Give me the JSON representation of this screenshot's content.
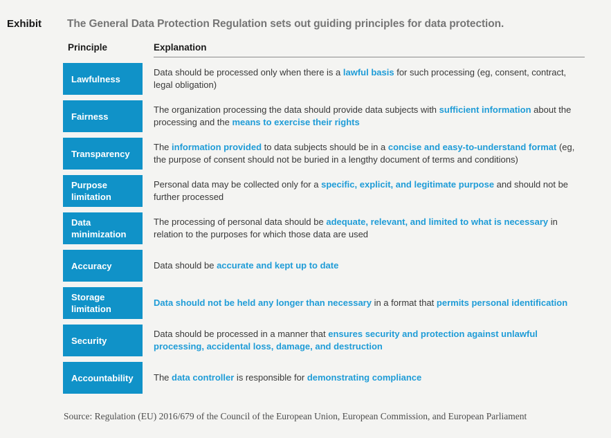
{
  "page": {
    "exhibit_label": "Exhibit",
    "title": "The General Data Protection Regulation sets out guiding principles for data protection.",
    "source": "Source: Regulation (EU) 2016/679 of the Council of the European Union, European Commission, and European Parliament"
  },
  "table": {
    "columns": [
      "Principle",
      "Explanation"
    ],
    "rows": [
      {
        "principle": "Lawfulness",
        "explanation": [
          {
            "text": "Data should be processed only when there is a ",
            "highlight": false
          },
          {
            "text": "lawful basis",
            "highlight": true
          },
          {
            "text": " for such processing (eg, consent, contract, legal obligation)",
            "highlight": false
          }
        ]
      },
      {
        "principle": "Fairness",
        "explanation": [
          {
            "text": "The organization processing the data should provide data subjects with ",
            "highlight": false
          },
          {
            "text": "sufficient information",
            "highlight": true
          },
          {
            "text": " about the processing and the ",
            "highlight": false
          },
          {
            "text": "means to exercise their rights",
            "highlight": true
          }
        ]
      },
      {
        "principle": "Transparency",
        "explanation": [
          {
            "text": "The ",
            "highlight": false
          },
          {
            "text": "information provided",
            "highlight": true
          },
          {
            "text": " to data subjects should be in a ",
            "highlight": false
          },
          {
            "text": "concise and easy-to-understand format",
            "highlight": true
          },
          {
            "text": " (eg, the purpose of consent should not be buried in a lengthy document of terms and conditions)",
            "highlight": false
          }
        ]
      },
      {
        "principle": "Purpose limitation",
        "explanation": [
          {
            "text": "Personal data may be collected only for a ",
            "highlight": false
          },
          {
            "text": "specific, explicit, and legitimate purpose",
            "highlight": true
          },
          {
            "text": " and should not be further processed",
            "highlight": false
          }
        ]
      },
      {
        "principle": "Data minimization",
        "explanation": [
          {
            "text": "The processing of personal data should be ",
            "highlight": false
          },
          {
            "text": "adequate, relevant, and limited to what is necessary",
            "highlight": true
          },
          {
            "text": " in relation to the purposes for which those data are used",
            "highlight": false
          }
        ]
      },
      {
        "principle": "Accuracy",
        "explanation": [
          {
            "text": "Data should be ",
            "highlight": false
          },
          {
            "text": "accurate and kept up to date",
            "highlight": true
          }
        ]
      },
      {
        "principle": "Storage limitation",
        "explanation": [
          {
            "text": "Data should not be held any longer than necessary",
            "highlight": true
          },
          {
            "text": " in a format that ",
            "highlight": false
          },
          {
            "text": "permits personal identification",
            "highlight": true
          }
        ]
      },
      {
        "principle": "Security",
        "explanation": [
          {
            "text": "Data should be processed in a manner that ",
            "highlight": false
          },
          {
            "text": "ensures security and protection against unlawful processing, accidental loss, damage, and destruction",
            "highlight": true
          }
        ]
      },
      {
        "principle": "Accountability",
        "explanation": [
          {
            "text": "The ",
            "highlight": false
          },
          {
            "text": "data controller",
            "highlight": true
          },
          {
            "text": " is responsible for ",
            "highlight": false
          },
          {
            "text": "demonstrating compliance",
            "highlight": true
          }
        ]
      }
    ]
  },
  "colors": {
    "background": "#f4f4f2",
    "principle_box": "#1092c8",
    "highlight_text": "#1f9cd7",
    "title_gray": "#757575",
    "body_text": "#383838",
    "header_text": "#1a1a1a",
    "rule_gray": "#8c8c8c",
    "source_text": "#4c4c4c"
  }
}
